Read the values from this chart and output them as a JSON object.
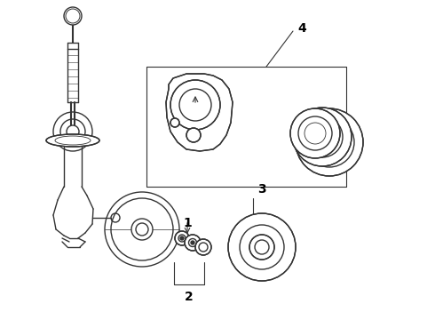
{
  "background_color": "#ffffff",
  "line_color": "#333333",
  "line_width": 1.0,
  "label_color": "#000000",
  "label_fontsize": 10,
  "figsize": [
    4.9,
    3.6
  ],
  "dpi": 100
}
